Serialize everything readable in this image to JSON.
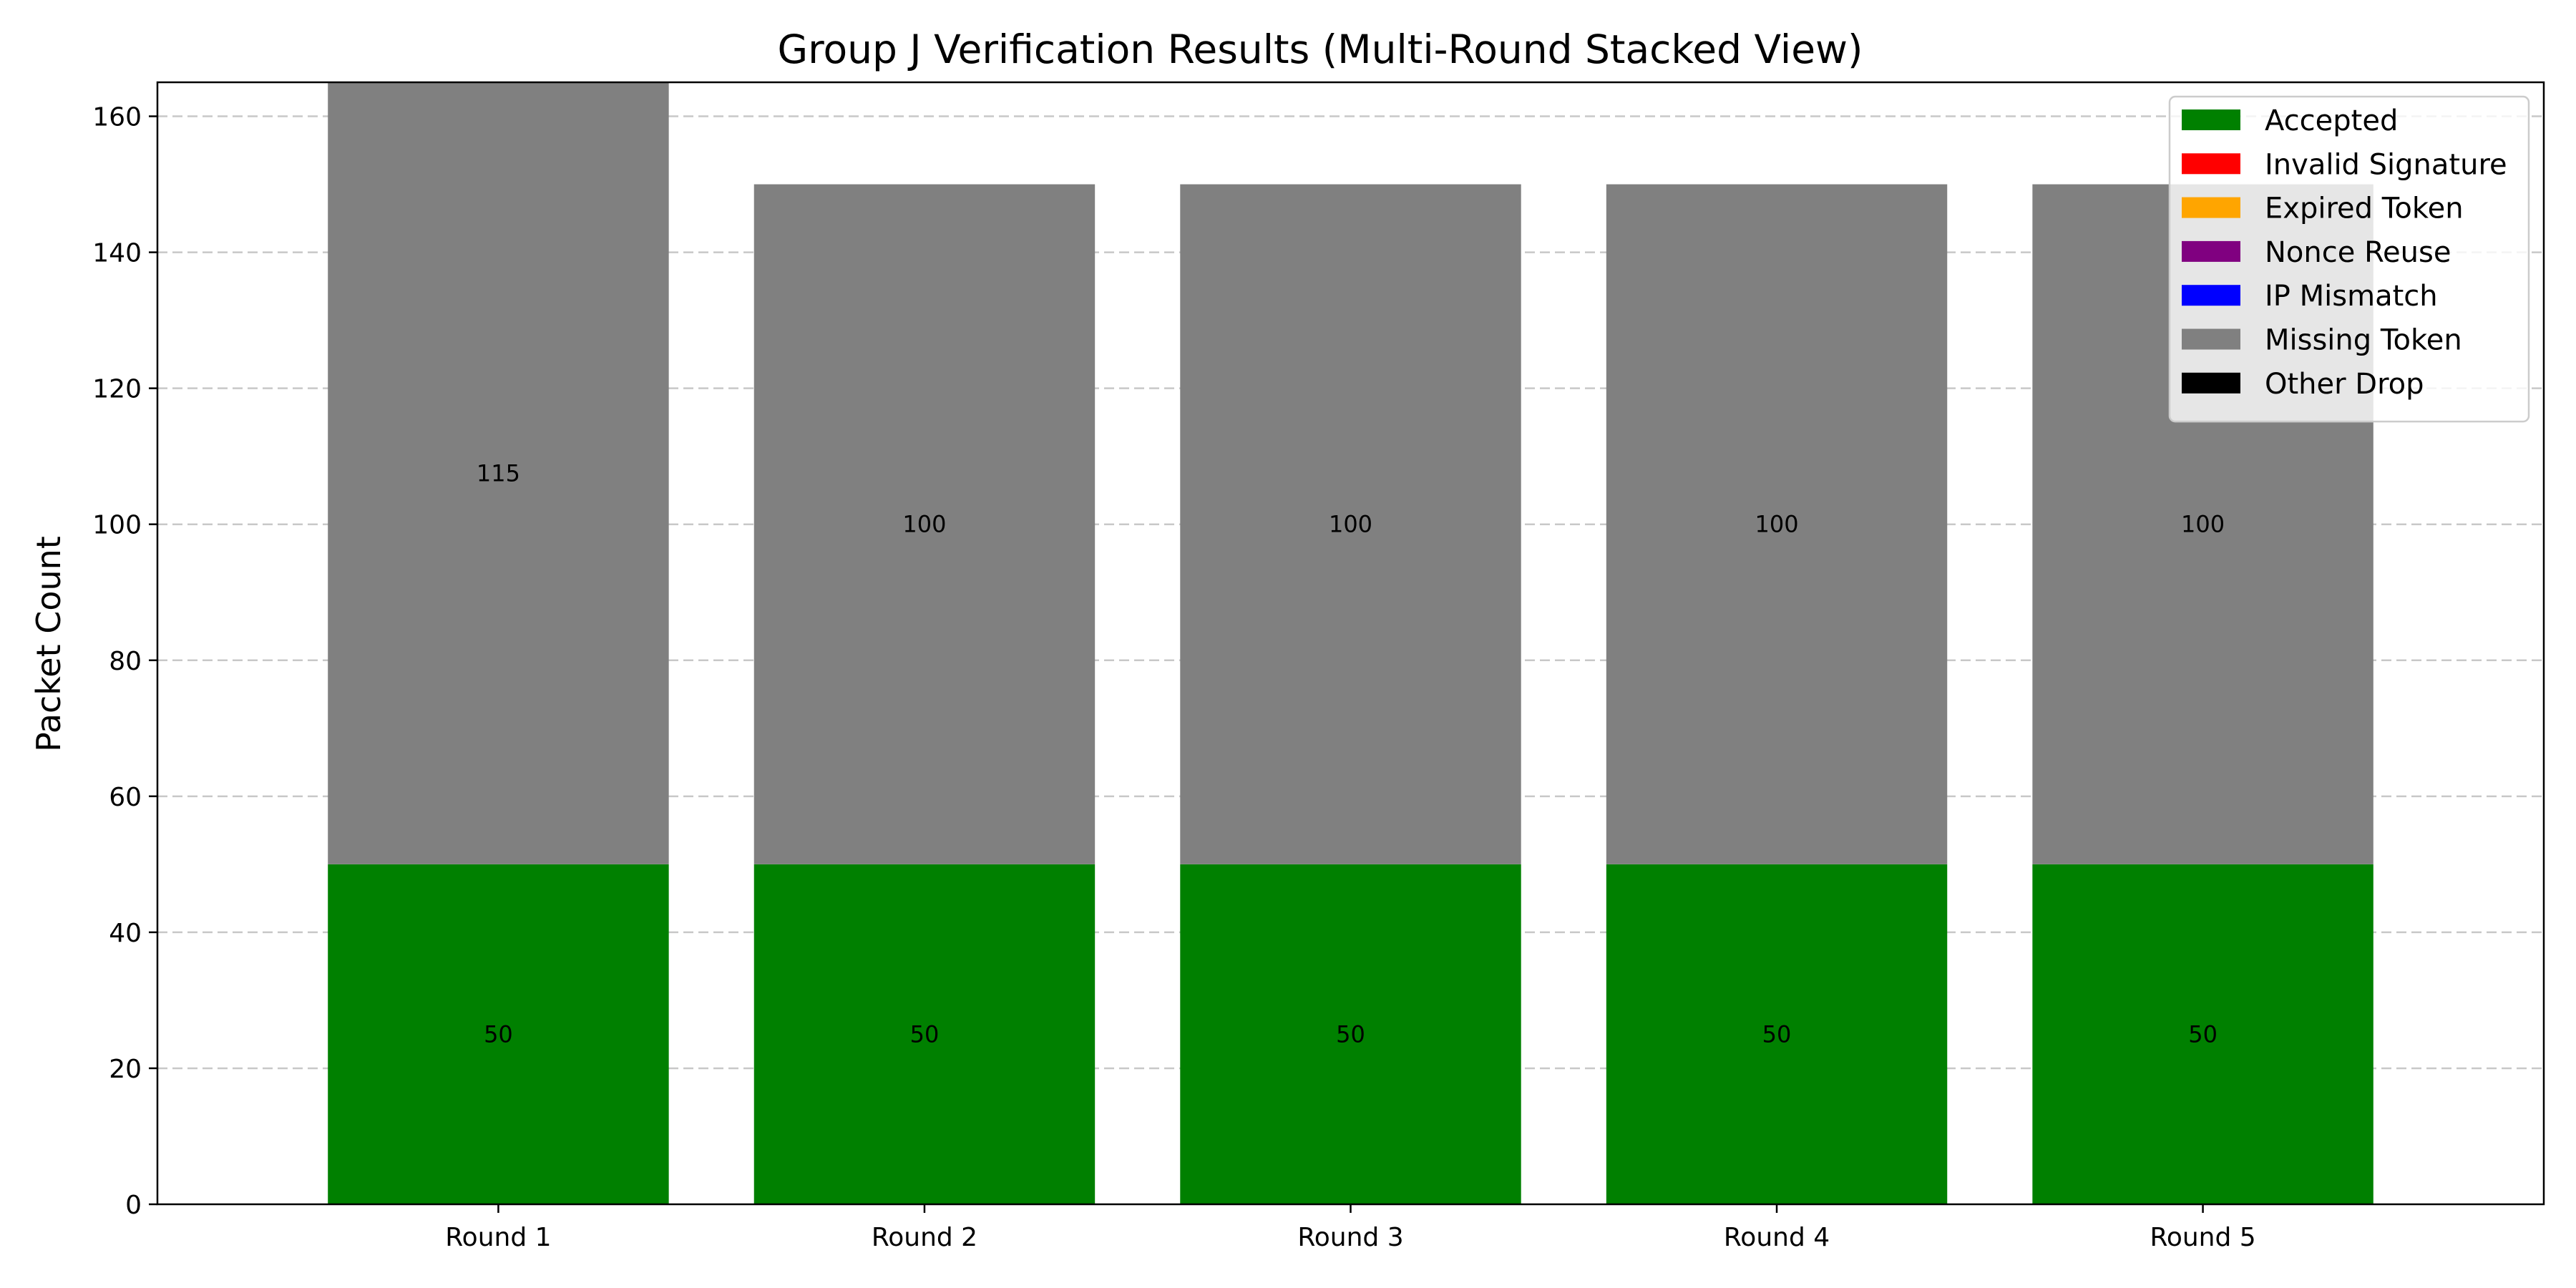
{
  "chart_data": {
    "type": "bar",
    "stacked": true,
    "title": "Group J Verification Results (Multi-Round Stacked View)",
    "xlabel": "",
    "ylabel": "Packet Count",
    "categories": [
      "Round 1",
      "Round 2",
      "Round 3",
      "Round 4",
      "Round 5"
    ],
    "ylim": [
      0,
      165
    ],
    "yticks": [
      0,
      20,
      40,
      60,
      80,
      100,
      120,
      140,
      160
    ],
    "grid": "y-dashed",
    "legend_position": "top-right",
    "series": [
      {
        "name": "Accepted",
        "color": "#008000",
        "values": [
          50,
          50,
          50,
          50,
          50
        ]
      },
      {
        "name": "Invalid Signature",
        "color": "#ff0000",
        "values": [
          0,
          0,
          0,
          0,
          0
        ]
      },
      {
        "name": "Expired Token",
        "color": "#ffa500",
        "values": [
          0,
          0,
          0,
          0,
          0
        ]
      },
      {
        "name": "Nonce Reuse",
        "color": "#800080",
        "values": [
          0,
          0,
          0,
          0,
          0
        ]
      },
      {
        "name": "IP Mismatch",
        "color": "#0000ff",
        "values": [
          0,
          0,
          0,
          0,
          0
        ]
      },
      {
        "name": "Missing Token",
        "color": "#808080",
        "values": [
          115,
          100,
          100,
          100,
          100
        ]
      },
      {
        "name": "Other Drop",
        "color": "#000000",
        "values": [
          0,
          0,
          0,
          0,
          0
        ]
      }
    ]
  }
}
